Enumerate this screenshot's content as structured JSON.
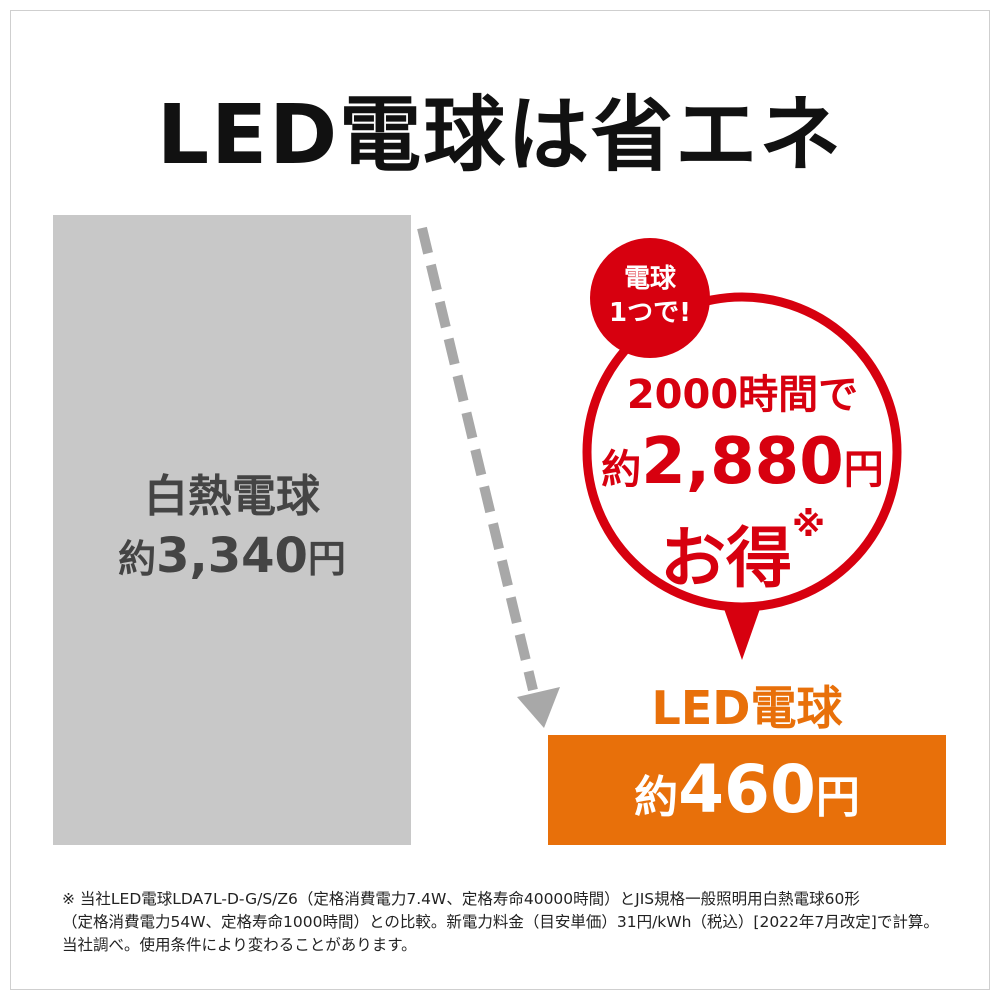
{
  "title": "LED電球は省エネ",
  "incandescent": {
    "label": "白熱電球",
    "prefix": "約",
    "amount": "3,340",
    "unit": "円"
  },
  "badge": {
    "line1": "電球",
    "line2": "1つで!"
  },
  "savings": {
    "line1": "2000時間で",
    "prefix": "約",
    "amount": "2,880",
    "unit": "円",
    "line3": "お得",
    "mark": "※"
  },
  "led": {
    "label": "LED電球",
    "prefix": "約",
    "amount": "460",
    "unit": "円"
  },
  "footnote": [
    "※ 当社LED電球LDA7L-D-G/S/Z6（定格消費電力7.4W、定格寿命40000時間）とJIS規格一般照明用白熱電球60形",
    "（定格消費電力54W、定格寿命1000時間）との比較。新電力料金（目安単価）31円/kWh（税込）[2022年7月改定]で計算。",
    "当社調べ。使用条件により変わることがあります。"
  ],
  "colors": {
    "red": "#d7000f",
    "orange": "#e8700a",
    "gray": "#c8c8c8",
    "arrow": "#a8a8a8"
  }
}
